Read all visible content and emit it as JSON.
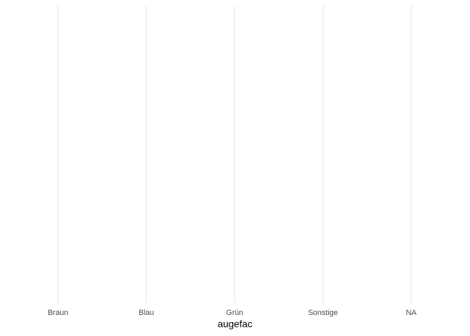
{
  "chart_data": {
    "type": "bar",
    "x_label": "augefac",
    "categories": [
      "Braun",
      "Blau",
      "Grün",
      "Sonstige",
      "NA"
    ],
    "grid": true
  }
}
